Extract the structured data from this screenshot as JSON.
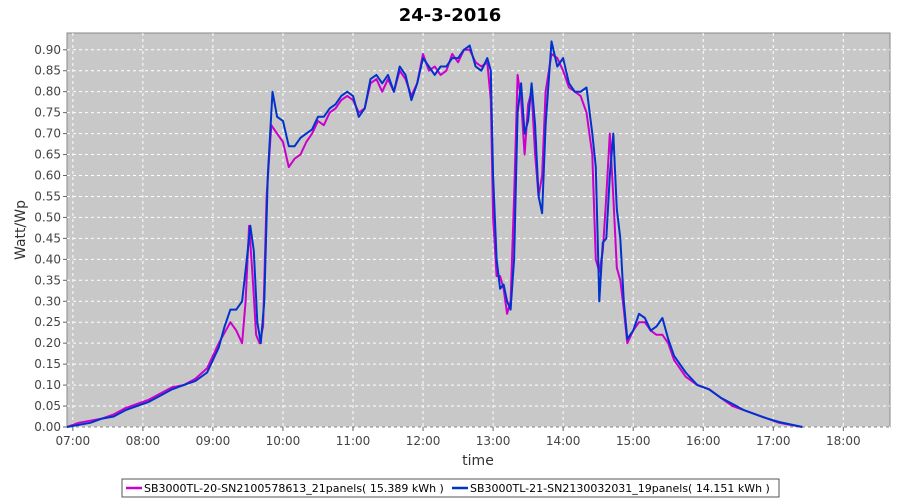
{
  "chart_data": {
    "type": "line",
    "title": "24-3-2016",
    "xlabel": "time",
    "ylabel": "Watt/Wp",
    "x_unit": "time of day",
    "xlim": [
      "06:55",
      "18:40"
    ],
    "ylim": [
      0,
      0.94
    ],
    "x_ticks": [
      "07:00",
      "08:00",
      "09:00",
      "10:00",
      "11:00",
      "12:00",
      "13:00",
      "14:00",
      "15:00",
      "16:00",
      "17:00",
      "18:00"
    ],
    "y_ticks": [
      "0.00",
      "0.05",
      "0.10",
      "0.15",
      "0.20",
      "0.25",
      "0.30",
      "0.35",
      "0.40",
      "0.45",
      "0.50",
      "0.55",
      "0.60",
      "0.65",
      "0.70",
      "0.75",
      "0.80",
      "0.85",
      "0.90"
    ],
    "grid": true,
    "plot_background": "#c8c8c8",
    "legend_position": "bottom",
    "series": [
      {
        "name": "SB3000TL-20-SN2100578613_21panels( 15.389 kWh )",
        "color": "#cc00cc",
        "points": [
          [
            "06:55",
            0.0
          ],
          [
            "07:05",
            0.01
          ],
          [
            "07:15",
            0.015
          ],
          [
            "07:25",
            0.02
          ],
          [
            "07:35",
            0.03
          ],
          [
            "07:45",
            0.045
          ],
          [
            "07:55",
            0.055
          ],
          [
            "08:05",
            0.065
          ],
          [
            "08:15",
            0.08
          ],
          [
            "08:25",
            0.095
          ],
          [
            "08:35",
            0.1
          ],
          [
            "08:45",
            0.115
          ],
          [
            "08:55",
            0.14
          ],
          [
            "09:05",
            0.2
          ],
          [
            "09:10",
            0.225
          ],
          [
            "09:15",
            0.25
          ],
          [
            "09:20",
            0.23
          ],
          [
            "09:25",
            0.2
          ],
          [
            "09:28",
            0.3
          ],
          [
            "09:31",
            0.48
          ],
          [
            "09:34",
            0.36
          ],
          [
            "09:37",
            0.22
          ],
          [
            "09:40",
            0.2
          ],
          [
            "09:43",
            0.24
          ],
          [
            "09:46",
            0.55
          ],
          [
            "09:50",
            0.72
          ],
          [
            "09:55",
            0.7
          ],
          [
            "10:00",
            0.68
          ],
          [
            "10:05",
            0.62
          ],
          [
            "10:10",
            0.64
          ],
          [
            "10:15",
            0.65
          ],
          [
            "10:20",
            0.68
          ],
          [
            "10:25",
            0.7
          ],
          [
            "10:30",
            0.73
          ],
          [
            "10:35",
            0.72
          ],
          [
            "10:40",
            0.75
          ],
          [
            "10:45",
            0.76
          ],
          [
            "10:50",
            0.78
          ],
          [
            "10:55",
            0.79
          ],
          [
            "11:00",
            0.78
          ],
          [
            "11:05",
            0.75
          ],
          [
            "11:10",
            0.76
          ],
          [
            "11:15",
            0.82
          ],
          [
            "11:20",
            0.83
          ],
          [
            "11:25",
            0.8
          ],
          [
            "11:30",
            0.83
          ],
          [
            "11:35",
            0.8
          ],
          [
            "11:40",
            0.85
          ],
          [
            "11:45",
            0.83
          ],
          [
            "11:50",
            0.79
          ],
          [
            "11:55",
            0.82
          ],
          [
            "12:00",
            0.89
          ],
          [
            "12:05",
            0.85
          ],
          [
            "12:10",
            0.86
          ],
          [
            "12:15",
            0.84
          ],
          [
            "12:20",
            0.85
          ],
          [
            "12:25",
            0.89
          ],
          [
            "12:30",
            0.87
          ],
          [
            "12:35",
            0.9
          ],
          [
            "12:40",
            0.9
          ],
          [
            "12:45",
            0.87
          ],
          [
            "12:50",
            0.86
          ],
          [
            "12:55",
            0.87
          ],
          [
            "12:58",
            0.78
          ],
          [
            "13:00",
            0.5
          ],
          [
            "13:03",
            0.36
          ],
          [
            "13:06",
            0.36
          ],
          [
            "13:09",
            0.33
          ],
          [
            "13:12",
            0.27
          ],
          [
            "13:15",
            0.3
          ],
          [
            "13:18",
            0.55
          ],
          [
            "13:21",
            0.84
          ],
          [
            "13:24",
            0.78
          ],
          [
            "13:27",
            0.65
          ],
          [
            "13:30",
            0.77
          ],
          [
            "13:33",
            0.8
          ],
          [
            "13:36",
            0.65
          ],
          [
            "13:39",
            0.55
          ],
          [
            "13:42",
            0.6
          ],
          [
            "13:45",
            0.8
          ],
          [
            "13:50",
            0.89
          ],
          [
            "13:55",
            0.88
          ],
          [
            "14:00",
            0.85
          ],
          [
            "14:05",
            0.81
          ],
          [
            "14:10",
            0.8
          ],
          [
            "14:15",
            0.79
          ],
          [
            "14:20",
            0.75
          ],
          [
            "14:25",
            0.65
          ],
          [
            "14:28",
            0.4
          ],
          [
            "14:31",
            0.37
          ],
          [
            "14:34",
            0.42
          ],
          [
            "14:37",
            0.55
          ],
          [
            "14:40",
            0.7
          ],
          [
            "14:43",
            0.55
          ],
          [
            "14:46",
            0.38
          ],
          [
            "14:49",
            0.35
          ],
          [
            "14:52",
            0.28
          ],
          [
            "14:55",
            0.2
          ],
          [
            "15:00",
            0.23
          ],
          [
            "15:05",
            0.25
          ],
          [
            "15:10",
            0.25
          ],
          [
            "15:15",
            0.23
          ],
          [
            "15:20",
            0.22
          ],
          [
            "15:25",
            0.22
          ],
          [
            "15:30",
            0.2
          ],
          [
            "15:35",
            0.16
          ],
          [
            "15:45",
            0.12
          ],
          [
            "15:55",
            0.1
          ],
          [
            "16:05",
            0.09
          ],
          [
            "16:15",
            0.07
          ],
          [
            "16:25",
            0.05
          ],
          [
            "16:35",
            0.04
          ],
          [
            "16:45",
            0.03
          ],
          [
            "16:55",
            0.02
          ],
          [
            "17:05",
            0.01
          ],
          [
            "17:15",
            0.005
          ],
          [
            "17:25",
            0.0
          ]
        ]
      },
      {
        "name": "SB3000TL-21-SN2130032031_19panels( 14.151 kWh )",
        "color": "#0033cc",
        "points": [
          [
            "06:55",
            0.0
          ],
          [
            "07:05",
            0.005
          ],
          [
            "07:15",
            0.01
          ],
          [
            "07:25",
            0.02
          ],
          [
            "07:35",
            0.025
          ],
          [
            "07:45",
            0.04
          ],
          [
            "07:55",
            0.05
          ],
          [
            "08:05",
            0.06
          ],
          [
            "08:15",
            0.075
          ],
          [
            "08:25",
            0.09
          ],
          [
            "08:35",
            0.1
          ],
          [
            "08:45",
            0.11
          ],
          [
            "08:55",
            0.13
          ],
          [
            "09:05",
            0.19
          ],
          [
            "09:10",
            0.24
          ],
          [
            "09:15",
            0.28
          ],
          [
            "09:20",
            0.28
          ],
          [
            "09:25",
            0.3
          ],
          [
            "09:29",
            0.4
          ],
          [
            "09:32",
            0.48
          ],
          [
            "09:35",
            0.42
          ],
          [
            "09:38",
            0.25
          ],
          [
            "09:41",
            0.2
          ],
          [
            "09:44",
            0.3
          ],
          [
            "09:47",
            0.6
          ],
          [
            "09:51",
            0.8
          ],
          [
            "09:55",
            0.74
          ],
          [
            "10:00",
            0.73
          ],
          [
            "10:05",
            0.67
          ],
          [
            "10:10",
            0.67
          ],
          [
            "10:15",
            0.69
          ],
          [
            "10:20",
            0.7
          ],
          [
            "10:25",
            0.71
          ],
          [
            "10:30",
            0.74
          ],
          [
            "10:35",
            0.74
          ],
          [
            "10:40",
            0.76
          ],
          [
            "10:45",
            0.77
          ],
          [
            "10:50",
            0.79
          ],
          [
            "10:55",
            0.8
          ],
          [
            "11:00",
            0.79
          ],
          [
            "11:05",
            0.74
          ],
          [
            "11:10",
            0.76
          ],
          [
            "11:15",
            0.83
          ],
          [
            "11:20",
            0.84
          ],
          [
            "11:25",
            0.82
          ],
          [
            "11:30",
            0.84
          ],
          [
            "11:35",
            0.8
          ],
          [
            "11:40",
            0.86
          ],
          [
            "11:45",
            0.84
          ],
          [
            "11:50",
            0.78
          ],
          [
            "11:55",
            0.82
          ],
          [
            "12:00",
            0.88
          ],
          [
            "12:05",
            0.86
          ],
          [
            "12:10",
            0.84
          ],
          [
            "12:15",
            0.86
          ],
          [
            "12:20",
            0.86
          ],
          [
            "12:25",
            0.88
          ],
          [
            "12:30",
            0.88
          ],
          [
            "12:35",
            0.9
          ],
          [
            "12:40",
            0.91
          ],
          [
            "12:45",
            0.86
          ],
          [
            "12:50",
            0.85
          ],
          [
            "12:55",
            0.88
          ],
          [
            "12:58",
            0.85
          ],
          [
            "13:00",
            0.6
          ],
          [
            "13:03",
            0.4
          ],
          [
            "13:06",
            0.33
          ],
          [
            "13:09",
            0.34
          ],
          [
            "13:12",
            0.3
          ],
          [
            "13:15",
            0.28
          ],
          [
            "13:18",
            0.4
          ],
          [
            "13:21",
            0.75
          ],
          [
            "13:24",
            0.82
          ],
          [
            "13:27",
            0.7
          ],
          [
            "13:30",
            0.73
          ],
          [
            "13:33",
            0.82
          ],
          [
            "13:36",
            0.72
          ],
          [
            "13:39",
            0.55
          ],
          [
            "13:42",
            0.51
          ],
          [
            "13:45",
            0.72
          ],
          [
            "13:50",
            0.92
          ],
          [
            "13:55",
            0.86
          ],
          [
            "14:00",
            0.88
          ],
          [
            "14:05",
            0.82
          ],
          [
            "14:10",
            0.8
          ],
          [
            "14:15",
            0.8
          ],
          [
            "14:20",
            0.81
          ],
          [
            "14:25",
            0.7
          ],
          [
            "14:28",
            0.62
          ],
          [
            "14:31",
            0.3
          ],
          [
            "14:34",
            0.44
          ],
          [
            "14:37",
            0.45
          ],
          [
            "14:40",
            0.6
          ],
          [
            "14:43",
            0.7
          ],
          [
            "14:46",
            0.52
          ],
          [
            "14:49",
            0.45
          ],
          [
            "14:52",
            0.3
          ],
          [
            "14:55",
            0.21
          ],
          [
            "15:00",
            0.23
          ],
          [
            "15:05",
            0.27
          ],
          [
            "15:10",
            0.26
          ],
          [
            "15:15",
            0.23
          ],
          [
            "15:20",
            0.24
          ],
          [
            "15:25",
            0.26
          ],
          [
            "15:30",
            0.21
          ],
          [
            "15:35",
            0.17
          ],
          [
            "15:45",
            0.13
          ],
          [
            "15:55",
            0.1
          ],
          [
            "16:05",
            0.09
          ],
          [
            "16:15",
            0.07
          ],
          [
            "16:25",
            0.055
          ],
          [
            "16:35",
            0.04
          ],
          [
            "16:45",
            0.03
          ],
          [
            "16:55",
            0.02
          ],
          [
            "17:05",
            0.012
          ],
          [
            "17:15",
            0.006
          ],
          [
            "17:25",
            0.0
          ]
        ]
      }
    ]
  }
}
